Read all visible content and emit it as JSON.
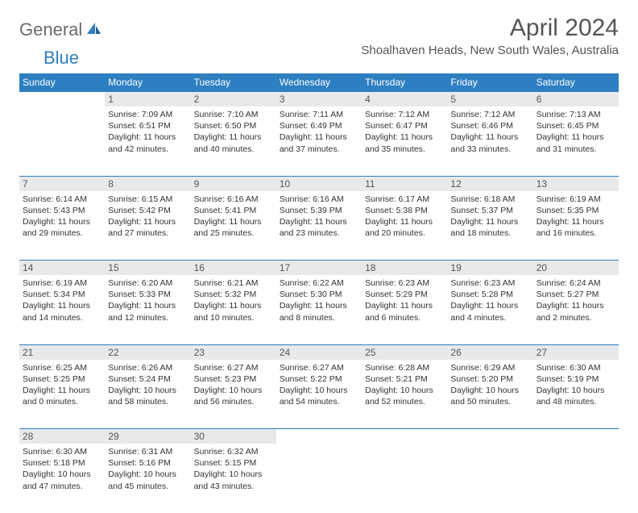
{
  "logo": {
    "text_general": "General",
    "text_blue": "Blue"
  },
  "title": "April 2024",
  "location": "Shoalhaven Heads, New South Wales, Australia",
  "colors": {
    "header_bg": "#2d7fc1",
    "header_text": "#ffffff",
    "daynum_bg": "#e9e9e9",
    "daynum_text": "#555555",
    "body_text": "#333333",
    "row_border": "#2d7fc1"
  },
  "day_headers": [
    "Sunday",
    "Monday",
    "Tuesday",
    "Wednesday",
    "Thursday",
    "Friday",
    "Saturday"
  ],
  "weeks": [
    {
      "nums": [
        "",
        "1",
        "2",
        "3",
        "4",
        "5",
        "6"
      ],
      "cells": [
        null,
        {
          "sunrise": "7:09 AM",
          "sunset": "6:51 PM",
          "daylight": "11 hours and 42 minutes."
        },
        {
          "sunrise": "7:10 AM",
          "sunset": "6:50 PM",
          "daylight": "11 hours and 40 minutes."
        },
        {
          "sunrise": "7:11 AM",
          "sunset": "6:49 PM",
          "daylight": "11 hours and 37 minutes."
        },
        {
          "sunrise": "7:12 AM",
          "sunset": "6:47 PM",
          "daylight": "11 hours and 35 minutes."
        },
        {
          "sunrise": "7:12 AM",
          "sunset": "6:46 PM",
          "daylight": "11 hours and 33 minutes."
        },
        {
          "sunrise": "7:13 AM",
          "sunset": "6:45 PM",
          "daylight": "11 hours and 31 minutes."
        }
      ]
    },
    {
      "nums": [
        "7",
        "8",
        "9",
        "10",
        "11",
        "12",
        "13"
      ],
      "cells": [
        {
          "sunrise": "6:14 AM",
          "sunset": "5:43 PM",
          "daylight": "11 hours and 29 minutes."
        },
        {
          "sunrise": "6:15 AM",
          "sunset": "5:42 PM",
          "daylight": "11 hours and 27 minutes."
        },
        {
          "sunrise": "6:16 AM",
          "sunset": "5:41 PM",
          "daylight": "11 hours and 25 minutes."
        },
        {
          "sunrise": "6:16 AM",
          "sunset": "5:39 PM",
          "daylight": "11 hours and 23 minutes."
        },
        {
          "sunrise": "6:17 AM",
          "sunset": "5:38 PM",
          "daylight": "11 hours and 20 minutes."
        },
        {
          "sunrise": "6:18 AM",
          "sunset": "5:37 PM",
          "daylight": "11 hours and 18 minutes."
        },
        {
          "sunrise": "6:19 AM",
          "sunset": "5:35 PM",
          "daylight": "11 hours and 16 minutes."
        }
      ]
    },
    {
      "nums": [
        "14",
        "15",
        "16",
        "17",
        "18",
        "19",
        "20"
      ],
      "cells": [
        {
          "sunrise": "6:19 AM",
          "sunset": "5:34 PM",
          "daylight": "11 hours and 14 minutes."
        },
        {
          "sunrise": "6:20 AM",
          "sunset": "5:33 PM",
          "daylight": "11 hours and 12 minutes."
        },
        {
          "sunrise": "6:21 AM",
          "sunset": "5:32 PM",
          "daylight": "11 hours and 10 minutes."
        },
        {
          "sunrise": "6:22 AM",
          "sunset": "5:30 PM",
          "daylight": "11 hours and 8 minutes."
        },
        {
          "sunrise": "6:23 AM",
          "sunset": "5:29 PM",
          "daylight": "11 hours and 6 minutes."
        },
        {
          "sunrise": "6:23 AM",
          "sunset": "5:28 PM",
          "daylight": "11 hours and 4 minutes."
        },
        {
          "sunrise": "6:24 AM",
          "sunset": "5:27 PM",
          "daylight": "11 hours and 2 minutes."
        }
      ]
    },
    {
      "nums": [
        "21",
        "22",
        "23",
        "24",
        "25",
        "26",
        "27"
      ],
      "cells": [
        {
          "sunrise": "6:25 AM",
          "sunset": "5:25 PM",
          "daylight": "11 hours and 0 minutes."
        },
        {
          "sunrise": "6:26 AM",
          "sunset": "5:24 PM",
          "daylight": "10 hours and 58 minutes."
        },
        {
          "sunrise": "6:27 AM",
          "sunset": "5:23 PM",
          "daylight": "10 hours and 56 minutes."
        },
        {
          "sunrise": "6:27 AM",
          "sunset": "5:22 PM",
          "daylight": "10 hours and 54 minutes."
        },
        {
          "sunrise": "6:28 AM",
          "sunset": "5:21 PM",
          "daylight": "10 hours and 52 minutes."
        },
        {
          "sunrise": "6:29 AM",
          "sunset": "5:20 PM",
          "daylight": "10 hours and 50 minutes."
        },
        {
          "sunrise": "6:30 AM",
          "sunset": "5:19 PM",
          "daylight": "10 hours and 48 minutes."
        }
      ]
    },
    {
      "nums": [
        "28",
        "29",
        "30",
        "",
        "",
        "",
        ""
      ],
      "cells": [
        {
          "sunrise": "6:30 AM",
          "sunset": "5:18 PM",
          "daylight": "10 hours and 47 minutes."
        },
        {
          "sunrise": "6:31 AM",
          "sunset": "5:16 PM",
          "daylight": "10 hours and 45 minutes."
        },
        {
          "sunrise": "6:32 AM",
          "sunset": "5:15 PM",
          "daylight": "10 hours and 43 minutes."
        },
        null,
        null,
        null,
        null
      ]
    }
  ],
  "labels": {
    "sunrise": "Sunrise: ",
    "sunset": "Sunset: ",
    "daylight": "Daylight: "
  }
}
